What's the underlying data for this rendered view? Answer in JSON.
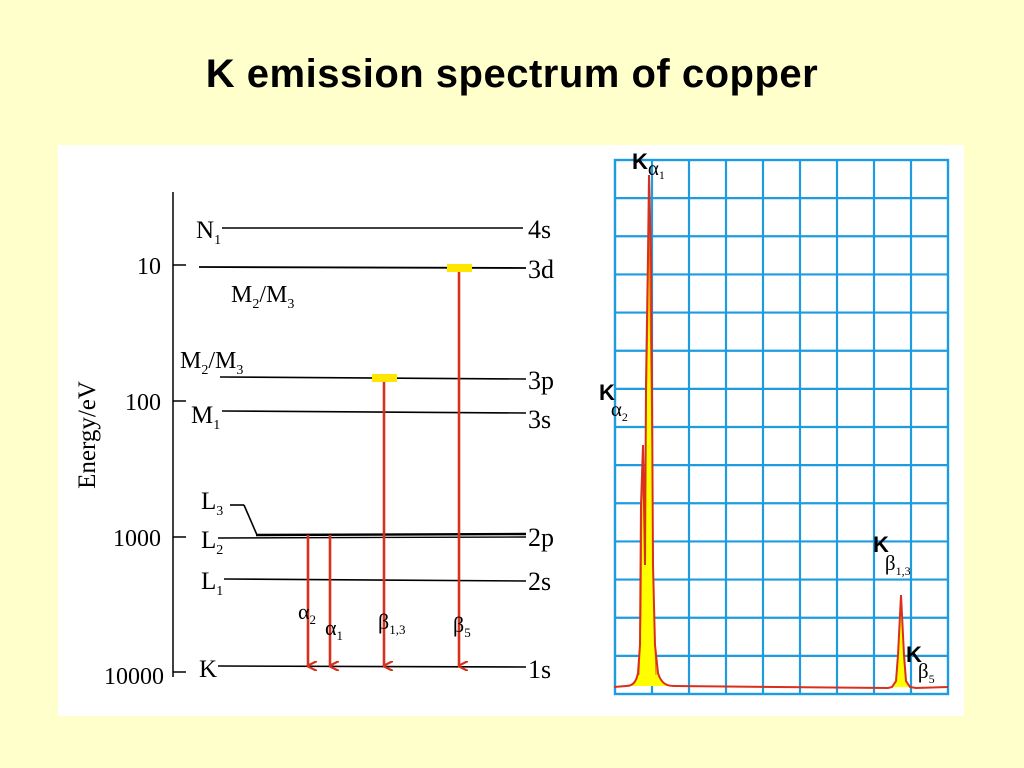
{
  "title": "K emission spectrum of copper",
  "colors": {
    "background": "#ffffcc",
    "panel": "#ffffff",
    "transition": "#d9301e",
    "highlight": "#ffe600",
    "grid": "#1f9be0",
    "peak_fill": "#ffff00",
    "spectrum_line": "#d9301e"
  },
  "energy_diagram": {
    "axis_label": "Energy/eV",
    "ticks": [
      {
        "label": "10",
        "value": 10
      },
      {
        "label": "100",
        "value": 100
      },
      {
        "label": "1000",
        "value": 1000
      },
      {
        "label": "10000",
        "value": 10000
      }
    ],
    "levels": [
      {
        "shell": "N",
        "sub": "1",
        "orbital": "4s"
      },
      {
        "shell": "M",
        "sub": "2",
        "shell2": "M",
        "sub2": "3",
        "orbital": "3d"
      },
      {
        "shell": "M",
        "sub": "2",
        "shell2": "M",
        "sub2": "3",
        "orbital": "3p"
      },
      {
        "shell": "M",
        "sub": "1",
        "orbital": "3s"
      },
      {
        "shell": "L",
        "sub": "3",
        "orbital": ""
      },
      {
        "shell": "L",
        "sub": "2",
        "orbital": "2p"
      },
      {
        "shell": "L",
        "sub": "1",
        "orbital": "2s"
      },
      {
        "shell": "K",
        "sub": "",
        "orbital": "1s"
      }
    ],
    "transitions": [
      {
        "greek": "α",
        "sub": "2",
        "from": "2p",
        "to": "1s"
      },
      {
        "greek": "α",
        "sub": "1",
        "from": "2p",
        "to": "1s"
      },
      {
        "greek": "β",
        "sub": "1,3",
        "from": "3p",
        "to": "1s"
      },
      {
        "greek": "β",
        "sub": "5",
        "from": "3d",
        "to": "1s"
      }
    ]
  },
  "spectrum": {
    "grid_columns": 9,
    "grid_rows": 14,
    "peaks": [
      {
        "k": "K",
        "greek": "α",
        "sub": "1",
        "relative_intensity": 1.0
      },
      {
        "k": "K",
        "greek": "α",
        "sub": "2",
        "relative_intensity": 0.52
      },
      {
        "k": "K",
        "greek": "β",
        "sub": "1,3",
        "relative_intensity": 0.18
      },
      {
        "k": "K",
        "greek": "β",
        "sub": "5",
        "relative_intensity": 0.0
      }
    ]
  }
}
